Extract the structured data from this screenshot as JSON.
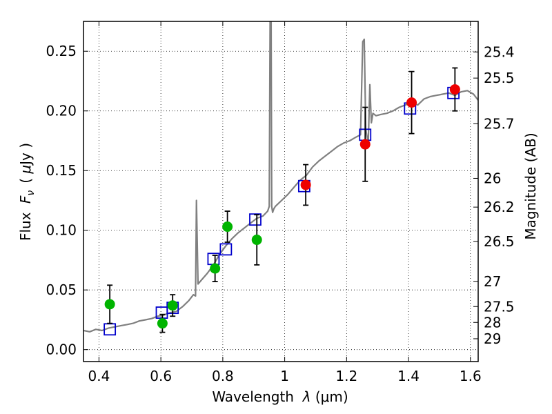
{
  "chart_data": {
    "type": "scatter",
    "xlabel": "Wavelength  λ (μm)",
    "ylabel": "Flux  F_ν  ( μJy )",
    "ylabel_parts": {
      "prefix": "Flux ",
      "symbol": "F",
      "subscript": "ν",
      "unit_open": "( ",
      "mu": "μ",
      "unit_rest": "Jy )"
    },
    "xlabel_parts": {
      "prefix": "Wavelength  ",
      "symbol": "λ",
      "unit": " (μm)"
    },
    "y2label": "Magnitude (AB)",
    "xlim": [
      0.35,
      1.625
    ],
    "ylim": [
      -0.01,
      0.275
    ],
    "grid": true,
    "xticks": [
      0.4,
      0.6,
      0.8,
      1.0,
      1.2,
      1.4,
      1.6
    ],
    "xtick_labels": [
      "0.4",
      "0.6",
      "0.8",
      "1",
      "1.2",
      "1.4",
      "1.6"
    ],
    "yticks": [
      0.0,
      0.05,
      0.1,
      0.15,
      0.2,
      0.25
    ],
    "ytick_labels": [
      "0.00",
      "0.05",
      "0.10",
      "0.15",
      "0.20",
      "0.25"
    ],
    "magnitude_ticks": [
      {
        "label": "25.4",
        "flux": 0.2494
      },
      {
        "label": "25.5",
        "flux": 0.2275
      },
      {
        "label": "25.7",
        "flux": 0.1892
      },
      {
        "label": "26",
        "flux": 0.1435
      },
      {
        "label": "26.2",
        "flux": 0.1194
      },
      {
        "label": "26.5",
        "flux": 0.0906
      },
      {
        "label": "27",
        "flux": 0.0572
      },
      {
        "label": "27.5",
        "flux": 0.0361
      },
      {
        "label": "28",
        "flux": 0.0228
      },
      {
        "label": "29",
        "flux": 0.0091
      }
    ],
    "model_spectrum": {
      "color": "#808080",
      "x": [
        0.35,
        0.37,
        0.39,
        0.41,
        0.43,
        0.45,
        0.47,
        0.49,
        0.51,
        0.53,
        0.55,
        0.57,
        0.59,
        0.61,
        0.63,
        0.65,
        0.67,
        0.69,
        0.705,
        0.712,
        0.715,
        0.72,
        0.73,
        0.75,
        0.77,
        0.79,
        0.81,
        0.83,
        0.85,
        0.87,
        0.89,
        0.91,
        0.93,
        0.945,
        0.95,
        0.953,
        0.956,
        0.958,
        0.961,
        0.965,
        0.97,
        0.99,
        1.01,
        1.03,
        1.05,
        1.07,
        1.09,
        1.11,
        1.13,
        1.15,
        1.17,
        1.19,
        1.21,
        1.23,
        1.245,
        1.252,
        1.257,
        1.262,
        1.27,
        1.275,
        1.28,
        1.285,
        1.295,
        1.31,
        1.33,
        1.35,
        1.37,
        1.39,
        1.41,
        1.43,
        1.45,
        1.47,
        1.49,
        1.51,
        1.53,
        1.55,
        1.57,
        1.59,
        1.61,
        1.625
      ],
      "y": [
        0.016,
        0.015,
        0.017,
        0.016,
        0.018,
        0.019,
        0.02,
        0.021,
        0.022,
        0.024,
        0.025,
        0.026,
        0.028,
        0.029,
        0.031,
        0.032,
        0.036,
        0.041,
        0.046,
        0.045,
        0.125,
        0.055,
        0.058,
        0.064,
        0.071,
        0.08,
        0.087,
        0.093,
        0.098,
        0.102,
        0.106,
        0.11,
        0.112,
        0.116,
        0.12,
        0.28,
        0.28,
        0.12,
        0.115,
        0.118,
        0.12,
        0.125,
        0.13,
        0.136,
        0.142,
        0.146,
        0.153,
        0.158,
        0.162,
        0.166,
        0.17,
        0.173,
        0.175,
        0.178,
        0.18,
        0.258,
        0.26,
        0.185,
        0.172,
        0.222,
        0.19,
        0.198,
        0.196,
        0.197,
        0.198,
        0.2,
        0.203,
        0.205,
        0.207,
        0.205,
        0.21,
        0.212,
        0.213,
        0.214,
        0.215,
        0.213,
        0.216,
        0.217,
        0.214,
        0.209
      ]
    },
    "model_photometry": {
      "marker": "open-square",
      "color": "#0000cc",
      "points": [
        {
          "x": 0.435,
          "y": 0.017
        },
        {
          "x": 0.603,
          "y": 0.031
        },
        {
          "x": 0.638,
          "y": 0.035
        },
        {
          "x": 0.77,
          "y": 0.076
        },
        {
          "x": 0.81,
          "y": 0.084
        },
        {
          "x": 0.905,
          "y": 0.109
        },
        {
          "x": 1.063,
          "y": 0.137
        },
        {
          "x": 1.26,
          "y": 0.18
        },
        {
          "x": 1.405,
          "y": 0.202
        },
        {
          "x": 1.545,
          "y": 0.215
        }
      ]
    },
    "observed_optical": {
      "marker": "filled-circle",
      "color": "#00b400",
      "points": [
        {
          "x": 0.435,
          "y": 0.038,
          "err": 0.016
        },
        {
          "x": 0.605,
          "y": 0.022,
          "err": 0.0075
        },
        {
          "x": 0.638,
          "y": 0.037,
          "err": 0.009
        },
        {
          "x": 0.775,
          "y": 0.068,
          "err": 0.011
        },
        {
          "x": 0.815,
          "y": 0.103,
          "err": 0.013
        },
        {
          "x": 0.91,
          "y": 0.092,
          "err": 0.021
        }
      ]
    },
    "observed_nir": {
      "marker": "filled-circle",
      "color": "#ee0000",
      "points": [
        {
          "x": 1.068,
          "y": 0.138,
          "err": 0.017
        },
        {
          "x": 1.26,
          "y": 0.172,
          "err": 0.031
        },
        {
          "x": 1.41,
          "y": 0.207,
          "err": 0.026
        },
        {
          "x": 1.55,
          "y": 0.218,
          "err": 0.018
        }
      ]
    }
  }
}
